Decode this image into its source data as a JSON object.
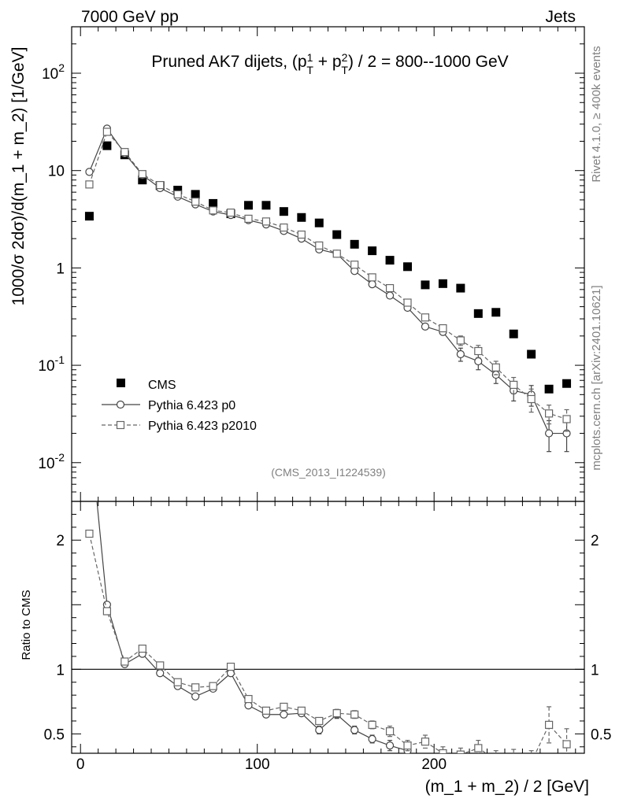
{
  "header": {
    "left": "7000 GeV pp",
    "right": "Jets"
  },
  "side_labels": {
    "rivet": "Rivet 4.1.0, ≥ 400k events",
    "mcplots": "mcplots.cern.ch [arXiv:2401.10621]"
  },
  "colors": {
    "cms": "#000000",
    "p0": "#444444",
    "p2010": "#666666",
    "side": "#808080"
  },
  "chart_data": [
    {
      "type": "scatter",
      "title": "Pruned AK7 dijets, (p_T^1 + p_T^2) / 2 = 800--1000 GeV",
      "analysis_tag": "(CMS_2013_I1224539)",
      "ylabel": "1000/σ  2dσ)/d(m_1 + m_2) [1/GeV]",
      "yscale": "log",
      "ylim": [
        0.004,
        300
      ],
      "xlim": [
        -5,
        285
      ],
      "yticks": [
        {
          "v": 0.01,
          "m": "10",
          "e": "-2"
        },
        {
          "v": 0.1,
          "m": "10",
          "e": "-1"
        },
        {
          "v": 1,
          "m": "1",
          "e": ""
        },
        {
          "v": 10,
          "m": "10",
          "e": ""
        },
        {
          "v": 100,
          "m": "10",
          "e": "2"
        }
      ],
      "legend_position": "bottom-left",
      "x": [
        5,
        15,
        25,
        35,
        45,
        55,
        65,
        75,
        85,
        95,
        105,
        115,
        125,
        135,
        145,
        155,
        165,
        175,
        185,
        195,
        205,
        215,
        225,
        235,
        245,
        255,
        265,
        275
      ],
      "series": [
        {
          "name": "CMS",
          "marker": "filled-square",
          "values": [
            3.4,
            18,
            14.5,
            8,
            7,
            6.3,
            5.7,
            4.6,
            3.6,
            4.4,
            4.4,
            3.8,
            3.3,
            2.9,
            2.2,
            1.75,
            1.5,
            1.2,
            1.03,
            0.67,
            0.69,
            0.62,
            0.34,
            0.35,
            0.21,
            0.13,
            0.057,
            0.065
          ]
        },
        {
          "name": "Pythia 6.423 p0",
          "marker": "open-circle",
          "line": "solid",
          "values": [
            9.7,
            27,
            15,
            9,
            6.6,
            5.4,
            4.5,
            3.8,
            3.5,
            3.1,
            2.8,
            2.4,
            2.0,
            1.55,
            1.4,
            0.93,
            0.68,
            0.52,
            0.39,
            0.25,
            0.22,
            0.13,
            0.11,
            0.08,
            0.055,
            0.05,
            0.02,
            0.02
          ],
          "errors": [
            0,
            0,
            0,
            0,
            0,
            0,
            0,
            0,
            0,
            0,
            0,
            0,
            0,
            0,
            0,
            0,
            0,
            0,
            0,
            0,
            0,
            0.02,
            0.02,
            0.015,
            0.012,
            0.012,
            0.007,
            0.007
          ]
        },
        {
          "name": "Pythia 6.423 p2010",
          "marker": "open-square",
          "line": "dashed",
          "values": [
            7.2,
            25,
            15.5,
            9.2,
            7.1,
            5.7,
            4.8,
            3.9,
            3.7,
            3.2,
            3.0,
            2.6,
            2.2,
            1.7,
            1.4,
            1.08,
            0.8,
            0.62,
            0.44,
            0.31,
            0.24,
            0.18,
            0.14,
            0.095,
            0.063,
            0.045,
            0.032,
            0.028
          ],
          "errors": [
            0,
            0,
            0,
            0,
            0,
            0,
            0,
            0,
            0,
            0,
            0,
            0,
            0,
            0,
            0,
            0,
            0,
            0,
            0,
            0,
            0,
            0.02,
            0.02,
            0.015,
            0.012,
            0.012,
            0.007,
            0.007
          ]
        }
      ]
    },
    {
      "type": "line",
      "xlabel": "(m_1 + m_2) / 2 [GeV]",
      "ylabel": "Ratio to CMS",
      "ylim": [
        0.35,
        2.3
      ],
      "xlim": [
        -5,
        285
      ],
      "xticks": [
        0,
        100,
        200
      ],
      "yticks": [
        0.5,
        1,
        2
      ],
      "reference_line": 1,
      "x": [
        5,
        15,
        25,
        35,
        45,
        55,
        65,
        75,
        85,
        95,
        105,
        115,
        125,
        135,
        145,
        155,
        165,
        175,
        185,
        195,
        205,
        215,
        225,
        235,
        245,
        255,
        265,
        275
      ],
      "series": [
        {
          "name": "Pythia 6.423 p0",
          "line": "solid",
          "marker": "open-circle",
          "values": [
            2.9,
            1.5,
            1.04,
            1.12,
            0.97,
            0.87,
            0.79,
            0.85,
            0.97,
            0.72,
            0.65,
            0.65,
            0.66,
            0.53,
            0.65,
            0.53,
            0.46,
            0.41,
            0.37,
            null,
            null,
            null,
            null,
            null,
            null,
            null,
            null,
            null
          ],
          "errors": [
            0,
            0,
            0,
            0,
            0,
            0,
            0,
            0,
            0,
            0,
            0.02,
            0.02,
            0.02,
            0.03,
            0.03,
            0.03,
            0.03,
            0.04,
            0.04,
            0,
            0,
            0,
            0,
            0,
            0,
            0,
            0,
            0
          ]
        },
        {
          "name": "Pythia 6.423 p2010",
          "line": "dashed",
          "marker": "open-square",
          "values": [
            2.05,
            1.45,
            1.06,
            1.16,
            1.03,
            0.9,
            0.86,
            0.87,
            1.02,
            0.77,
            0.68,
            0.71,
            0.68,
            0.6,
            0.66,
            0.65,
            0.57,
            0.52,
            0.41,
            0.44,
            0.35,
            0.34,
            0.39,
            0.3,
            0.3,
            0.28,
            0.57,
            0.42
          ],
          "errors": [
            0,
            0,
            0,
            0,
            0,
            0,
            0,
            0,
            0,
            0,
            0.02,
            0.02,
            0.02,
            0.02,
            0.03,
            0.03,
            0.03,
            0.04,
            0.04,
            0.05,
            0.05,
            0.05,
            0.06,
            0.07,
            0.08,
            0.09,
            0.14,
            0.12
          ]
        }
      ]
    }
  ]
}
